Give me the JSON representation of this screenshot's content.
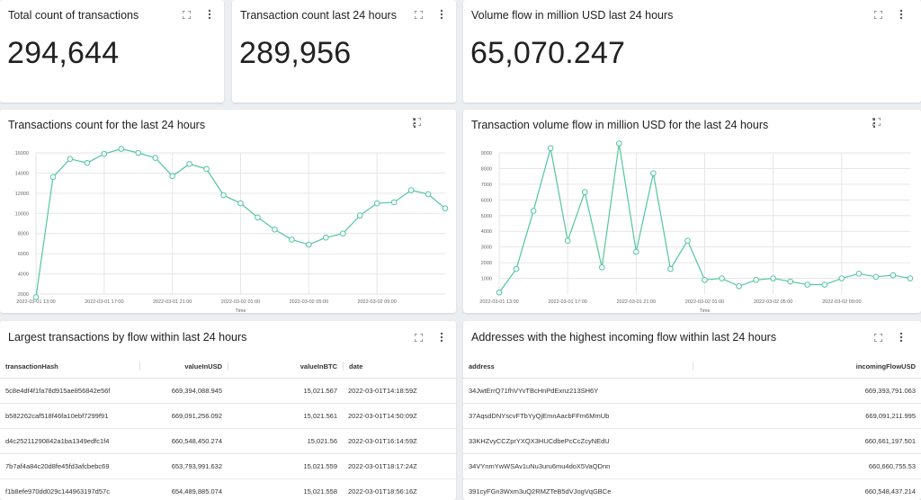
{
  "kpis": [
    {
      "title": "Total count of transactions",
      "value": "294,644"
    },
    {
      "title": "Transaction count last 24 hours",
      "value": "289,956"
    },
    {
      "title": "Volume flow in million USD last 24 hours",
      "value": "65,070.247"
    }
  ],
  "charts": {
    "count": {
      "title": "Transactions count for the last 24 hours"
    },
    "volume": {
      "title": "Transaction volume flow in million USD for the last 24 hours"
    }
  },
  "chart_data": [
    {
      "type": "line",
      "title": "Transactions count for the last 24 hours",
      "xlabel": "Time",
      "ylabel": "",
      "color": "#52c79a",
      "ylim": [
        2000,
        16000
      ],
      "yticks": [
        "16000",
        "14000",
        "12000",
        "10000",
        "8000",
        "6000",
        "4000",
        "2000"
      ],
      "xticks": [
        "2022-03-01 13:00",
        "2022-03-01 17:00",
        "2022-03-01 21:00",
        "2022-03-02 01:00",
        "2022-03-02 05:00",
        "2022-03-02 09:00"
      ],
      "x": [
        0,
        1,
        2,
        3,
        4,
        5,
        6,
        7,
        8,
        9,
        10,
        11,
        12,
        13,
        14,
        15,
        16,
        17,
        18,
        19,
        20,
        21,
        22,
        23,
        24
      ],
      "values": [
        1700,
        13600,
        15400,
        15000,
        15900,
        16400,
        16000,
        15500,
        13700,
        14900,
        14400,
        11800,
        11000,
        9600,
        8400,
        7400,
        6900,
        7600,
        8000,
        9800,
        11000,
        11100,
        12300,
        11900,
        10500
      ]
    },
    {
      "type": "line",
      "title": "Transaction volume flow in million USD for the last 24 hours",
      "xlabel": "Time",
      "ylabel": "",
      "color": "#52c79a",
      "ylim": [
        0,
        9000
      ],
      "yticks": [
        "9000",
        "8000",
        "7000",
        "6000",
        "5000",
        "4000",
        "3000",
        "2000",
        "1000"
      ],
      "xticks": [
        "2022-03-01 13:00",
        "2022-03-01 17:00",
        "2022-03-01 21:00",
        "2022-03-02 01:00",
        "2022-03-02 05:00",
        "2022-03-02 09:00"
      ],
      "x": [
        0,
        1,
        2,
        3,
        4,
        5,
        6,
        7,
        8,
        9,
        10,
        11,
        12,
        13,
        14,
        15,
        16,
        17,
        18,
        19,
        20,
        21,
        22,
        23,
        24
      ],
      "values": [
        100,
        1600,
        5300,
        9300,
        3400,
        6500,
        1700,
        9600,
        2700,
        7700,
        1600,
        3400,
        900,
        1000,
        500,
        900,
        1000,
        800,
        600,
        600,
        1000,
        1300,
        1100,
        1200,
        1000
      ]
    }
  ],
  "tables": {
    "transactions": {
      "title": "Largest transactions by flow within last 24 hours",
      "headers": {
        "hash": "transactionHash",
        "usd": "valueInUSD",
        "btc": "valueInBTC",
        "date": "date"
      },
      "rows": [
        {
          "hash": "5c8e4df4f1fa78d915ae856842e56f",
          "usd": "669,394,088.945",
          "btc": "15,021.567",
          "date": "2022-03-01T14:18:59Z"
        },
        {
          "hash": "b582262caf518f46fa10ebf7299f91",
          "usd": "669,091,256.092",
          "btc": "15,021.561",
          "date": "2022-03-01T14:50:09Z"
        },
        {
          "hash": "d4c25211290842a1ba1349edfc1f4",
          "usd": "660,548,450.274",
          "btc": "15,021.56",
          "date": "2022-03-01T16:14:59Z"
        },
        {
          "hash": "7b7af4a84c20d8fe45fd3afcbebc69",
          "usd": "653,793,991.632",
          "btc": "15,021.559",
          "date": "2022-03-01T18:17:24Z"
        },
        {
          "hash": "f1b8efe970dd029c144963197d57c",
          "usd": "654,489,885.074",
          "btc": "15,021.558",
          "date": "2022-03-01T18:56:16Z"
        }
      ]
    },
    "addresses": {
      "title": "Addresses with the highest incoming flow within last 24 hours",
      "headers": {
        "address": "address",
        "flow": "incomingFlowUSD"
      },
      "rows": [
        {
          "address": "34JwtErrQ71fhVYvTBcHnPdExnz213SH6Y",
          "flow": "669,393,791.063"
        },
        {
          "address": "37AqsdDNYscvFTbYyQjEmnAacbFFm6MmUb",
          "flow": "669,091,211.995"
        },
        {
          "address": "33KHZvyCCZprYXQX3HUCdbePcCcZcyNEdU",
          "flow": "660,661,197.501"
        },
        {
          "address": "34VYnmYwWSAv1uNu3uru6mu4doX5VaQDnn",
          "flow": "660,660,755.53"
        },
        {
          "address": "391cyFGn3Wxm3uQ2RMZTeB5dVJogVqGBCe",
          "flow": "660,548,437.214"
        }
      ]
    }
  }
}
